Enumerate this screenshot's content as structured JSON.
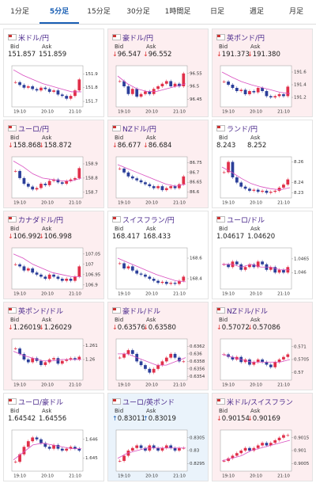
{
  "tabs": [
    "1分足",
    "5分足",
    "15分足",
    "30分足",
    "1時間足",
    "日足",
    "週足",
    "月足"
  ],
  "active_tab": 1,
  "bid_label": "Bid",
  "ask_label": "Ask",
  "time_labels": [
    "19:10",
    "20:10",
    "21:10"
  ],
  "panels": [
    {
      "name": "米ドル/円",
      "trend": null,
      "bid": "151.857",
      "ask": "151.859",
      "ylim": [
        151.66,
        151.96
      ],
      "yticks": [
        151.7,
        151.8,
        151.9
      ],
      "closes": [
        151.84,
        151.82,
        151.8,
        151.81,
        151.79,
        151.78,
        151.8,
        151.79,
        151.77,
        151.78,
        151.75,
        151.74,
        151.72,
        151.74,
        151.78,
        151.86
      ],
      "ma": [
        151.93,
        151.89,
        151.86,
        151.83,
        151.81,
        151.79,
        151.77,
        151.77
      ]
    },
    {
      "name": "豪ドル/円",
      "trend": "down",
      "bid": "96.547",
      "ask": "96.552",
      "ylim": [
        96.42,
        96.58
      ],
      "yticks": [
        96.45,
        96.5,
        96.55
      ],
      "closes": [
        96.52,
        96.5,
        96.47,
        96.49,
        96.46,
        96.47,
        96.48,
        96.47,
        96.49,
        96.5,
        96.51,
        96.52,
        96.5,
        96.51,
        96.5,
        96.55
      ],
      "ma": [
        96.54,
        96.51,
        96.49,
        96.48,
        96.48,
        96.49,
        96.5,
        96.51
      ]
    },
    {
      "name": "英ポンド/円",
      "trend": "down",
      "bid": "191.373",
      "ask": "191.380",
      "ylim": [
        191.05,
        191.7
      ],
      "yticks": [
        191.2,
        191.4,
        191.6
      ],
      "closes": [
        191.45,
        191.4,
        191.35,
        191.3,
        191.32,
        191.25,
        191.3,
        191.28,
        191.35,
        191.3,
        191.22,
        191.2,
        191.22,
        191.25,
        191.22,
        191.37
      ],
      "ma": [
        191.6,
        191.52,
        191.45,
        191.4,
        191.36,
        191.32,
        191.28,
        191.26
      ]
    },
    {
      "name": "ユーロ/円",
      "trend": "down",
      "bid": "158.868",
      "ask": "158.872",
      "ylim": [
        158.66,
        158.95
      ],
      "yticks": [
        158.7,
        158.8,
        158.9
      ],
      "closes": [
        158.85,
        158.8,
        158.76,
        158.74,
        158.72,
        158.73,
        158.76,
        158.75,
        158.78,
        158.79,
        158.77,
        158.76,
        158.78,
        158.79,
        158.8,
        158.87
      ],
      "ma": [
        158.92,
        158.88,
        158.83,
        158.8,
        158.79,
        158.78,
        158.78,
        158.8
      ]
    },
    {
      "name": "NZドル/円",
      "trend": "down",
      "bid": "86.677",
      "ask": "86.684",
      "ylim": [
        86.57,
        86.78
      ],
      "yticks": [
        86.6,
        86.65,
        86.7,
        86.75
      ],
      "closes": [
        86.72,
        86.7,
        86.68,
        86.67,
        86.66,
        86.65,
        86.64,
        86.63,
        86.62,
        86.63,
        86.61,
        86.62,
        86.63,
        86.62,
        86.64,
        86.68
      ],
      "ma": [
        86.74,
        86.72,
        86.7,
        86.68,
        86.66,
        86.64,
        86.63,
        86.64
      ]
    },
    {
      "name": "ランド/円",
      "trend": null,
      "bid": "8.243",
      "ask": "8.252",
      "ylim": [
        8.225,
        8.265
      ],
      "yticks": [
        8.23,
        8.24,
        8.26
      ],
      "closes": [
        8.25,
        8.26,
        8.245,
        8.24,
        8.236,
        8.234,
        8.232,
        8.233,
        8.231,
        8.232,
        8.23,
        8.231,
        8.232,
        8.235,
        8.238,
        8.243
      ],
      "ma": [
        8.255,
        8.25,
        8.244,
        8.239,
        8.236,
        8.234,
        8.233,
        8.235
      ]
    },
    {
      "name": "カナダドル/円",
      "trend": "down",
      "bid": "106.992",
      "ask": "106.998",
      "ylim": [
        106.88,
        107.08
      ],
      "yticks": [
        106.9,
        106.95,
        107,
        107.05
      ],
      "closes": [
        107,
        106.99,
        106.97,
        106.98,
        106.96,
        106.95,
        106.94,
        106.93,
        106.95,
        106.94,
        106.93,
        106.92,
        106.93,
        106.92,
        106.94,
        106.99
      ],
      "ma": [
        107.05,
        107.03,
        107,
        106.98,
        106.96,
        106.95,
        106.94,
        106.94
      ]
    },
    {
      "name": "スイスフラン/円",
      "trend": null,
      "bid": "168.417",
      "ask": "168.433",
      "ylim": [
        168.3,
        168.7
      ],
      "yticks": [
        168.4,
        168.6
      ],
      "closes": [
        168.55,
        168.5,
        168.52,
        168.48,
        168.45,
        168.44,
        168.42,
        168.4,
        168.38,
        168.36,
        168.37,
        168.35,
        168.36,
        168.35,
        168.38,
        168.42
      ],
      "ma": [
        168.6,
        168.56,
        168.52,
        168.48,
        168.44,
        168.41,
        168.38,
        168.37
      ]
    },
    {
      "name": "ユーロ/ドル",
      "trend": null,
      "bid": "1.04617",
      "ask": "1.04620",
      "ylim": [
        1.0454,
        1.0469
      ],
      "yticks": [
        1.046,
        1.0465
      ],
      "closes": [
        1.0463,
        1.0462,
        1.0464,
        1.0463,
        1.0461,
        1.0462,
        1.0463,
        1.0462,
        1.0464,
        1.0463,
        1.0461,
        1.0462,
        1.046,
        1.0461,
        1.046,
        1.0462
      ],
      "ma": [
        1.0463,
        1.0463,
        1.0462,
        1.0463,
        1.0462,
        1.0462,
        1.0461,
        1.0461
      ]
    },
    {
      "name": "英ポンド/ドル",
      "trend": "down",
      "bid": "1.26019",
      "ask": "1.26029",
      "ylim": [
        1.2585,
        1.2615
      ],
      "yticks": [
        1.26,
        1.261
      ],
      "closes": [
        1.2608,
        1.2604,
        1.26,
        1.2598,
        1.2601,
        1.2599,
        1.2596,
        1.2598,
        1.26,
        1.2601,
        1.2597,
        1.2599,
        1.26,
        1.2601,
        1.26,
        1.2602
      ],
      "ma": [
        1.2606,
        1.2603,
        1.2601,
        1.2599,
        1.2599,
        1.26,
        1.26,
        1.26
      ]
    },
    {
      "name": "豪ドル/ドル",
      "trend": "down",
      "bid": "0.63576",
      "ask": "0.63580",
      "ylim": [
        0.6353,
        0.6364
      ],
      "yticks": [
        0.6354,
        0.6356,
        0.6358,
        0.636,
        0.6362
      ],
      "closes": [
        0.6359,
        0.636,
        0.6361,
        0.636,
        0.6358,
        0.6357,
        0.6356,
        0.6355,
        0.6356,
        0.6357,
        0.6358,
        0.6359,
        0.636,
        0.6359,
        0.6358,
        0.6358
      ],
      "ma": [
        0.636,
        0.636,
        0.6359,
        0.6358,
        0.6357,
        0.6357,
        0.6358,
        0.6359
      ]
    },
    {
      "name": "NZドル/ドル",
      "trend": "down",
      "bid": "0.57072",
      "ask": "0.57086",
      "ylim": [
        0.5697,
        0.5713
      ],
      "yticks": [
        0.57,
        0.5705,
        0.571
      ],
      "closes": [
        0.5707,
        0.5706,
        0.5705,
        0.5706,
        0.5704,
        0.5705,
        0.5703,
        0.5704,
        0.5705,
        0.5704,
        0.5703,
        0.5702,
        0.5704,
        0.5705,
        0.5706,
        0.5707
      ],
      "ma": [
        0.5707,
        0.5706,
        0.5705,
        0.5704,
        0.5704,
        0.5704,
        0.5704,
        0.5705
      ]
    },
    {
      "name": "ユーロ/豪ドル",
      "trend": null,
      "bid": "1.64542",
      "ask": "1.64556",
      "ylim": [
        1.6443,
        1.6465
      ],
      "yticks": [
        1.645,
        1.646
      ],
      "closes": [
        1.6448,
        1.6452,
        1.6456,
        1.6459,
        1.6461,
        1.646,
        1.6458,
        1.6456,
        1.6455,
        1.6457,
        1.6455,
        1.6454,
        1.6455,
        1.6456,
        1.6455,
        1.6454
      ],
      "ma": [
        1.6449,
        1.6453,
        1.6457,
        1.6458,
        1.6457,
        1.6456,
        1.6455,
        1.6455
      ]
    },
    {
      "name": "ユーロ/英ポンド",
      "trend": "up",
      "bid": "0.83011",
      "ask": "0.83019",
      "ylim": [
        0.8292,
        0.8308
      ],
      "yticks": [
        0.8295,
        0.83,
        0.8305
      ],
      "closes": [
        0.8296,
        0.8298,
        0.83,
        0.8301,
        0.8302,
        0.8301,
        0.83,
        0.8302,
        0.8301,
        0.83,
        0.8301,
        0.8302,
        0.8301,
        0.83,
        0.8301,
        0.8301
      ],
      "ma": [
        0.8297,
        0.8299,
        0.83,
        0.8301,
        0.8301,
        0.8301,
        0.8301,
        0.8301
      ]
    },
    {
      "name": "米ドル/スイスフラン",
      "trend": "down",
      "bid": "0.90154",
      "ask": "0.90169",
      "ylim": [
        0.9002,
        0.9018
      ],
      "yticks": [
        0.9005,
        0.901,
        0.9015
      ],
      "closes": [
        0.9006,
        0.9007,
        0.9008,
        0.9009,
        0.901,
        0.9011,
        0.901,
        0.9011,
        0.9012,
        0.9013,
        0.9012,
        0.9013,
        0.9014,
        0.9015,
        0.9016,
        0.9016
      ],
      "ma": [
        0.9006,
        0.9007,
        0.9008,
        0.901,
        0.9011,
        0.9012,
        0.9013,
        0.9014
      ]
    }
  ]
}
